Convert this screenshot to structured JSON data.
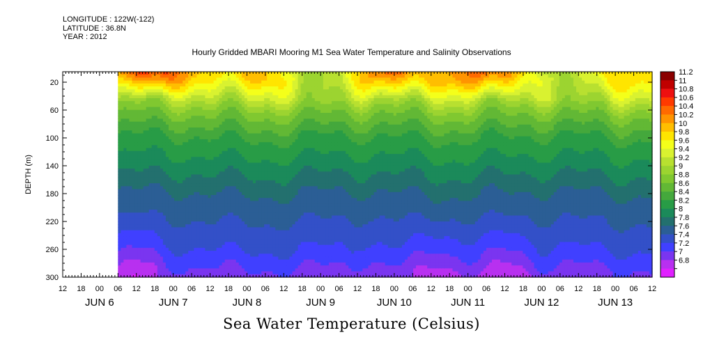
{
  "header": {
    "longitude": "LONGITUDE : 122W(-122)",
    "latitude": "LATITUDE : 36.8N",
    "year": "YEAR : 2012"
  },
  "title": "Hourly Gridded MBARI Mooring M1 Sea Water Temperature and Salinity Observations",
  "caption": "Sea Water Temperature (Celsius)",
  "chart_data": {
    "type": "heatmap",
    "title": "Hourly Gridded MBARI Mooring M1 Sea Water Temperature and Salinity Observations",
    "xlabel": "",
    "ylabel": "DEPTH (m)",
    "colorbar_label": "Sea Water Temperature (Celsius)",
    "y_ticks": [
      20,
      60,
      100,
      140,
      180,
      220,
      260,
      300
    ],
    "ylim": [
      300,
      5
    ],
    "x_hour_ticks": [
      "12",
      "18",
      "00",
      "06",
      "12",
      "18",
      "00",
      "06",
      "12",
      "18",
      "00",
      "06",
      "12",
      "18",
      "00",
      "06",
      "12",
      "18",
      "00",
      "06",
      "12",
      "18",
      "00",
      "06",
      "12",
      "18",
      "00",
      "06",
      "12",
      "18",
      "00",
      "06",
      "12"
    ],
    "x_day_labels": [
      "JUN  6",
      "JUN  7",
      "JUN  8",
      "JUN  9",
      "JUN 10",
      "JUN 11",
      "JUN 12",
      "JUN 13"
    ],
    "data_start_hour": 18,
    "colorbar": {
      "levels": [
        "11.2",
        "11",
        "10.8",
        "10.6",
        "10.4",
        "10.2",
        "10",
        "9.8",
        "9.6",
        "9.4",
        "9.2",
        "9",
        "8.8",
        "8.6",
        "8.4",
        "8.2",
        "8",
        "7.8",
        "7.6",
        "7.4",
        "7.2",
        "7",
        "6.8"
      ],
      "colors": [
        "#8b0000",
        "#c00000",
        "#ee1010",
        "#ff3a00",
        "#ff6a00",
        "#ff9400",
        "#ffbe00",
        "#ffe500",
        "#f4ff1a",
        "#d9f230",
        "#b8e030",
        "#9cd430",
        "#80c830",
        "#62b835",
        "#44a83c",
        "#289c46",
        "#1b8a5a",
        "#23706e",
        "#2b5e95",
        "#3350c8",
        "#4040ff",
        "#7a35f0",
        "#b830f0",
        "#e020ff"
      ]
    },
    "depth_profile_typical": [
      {
        "depth": 10,
        "value": 10.0
      },
      {
        "depth": 30,
        "value": 9.6
      },
      {
        "depth": 60,
        "value": 8.9
      },
      {
        "depth": 100,
        "value": 8.4
      },
      {
        "depth": 140,
        "value": 8.1
      },
      {
        "depth": 180,
        "value": 7.8
      },
      {
        "depth": 220,
        "value": 7.6
      },
      {
        "depth": 260,
        "value": 7.4
      },
      {
        "depth": 300,
        "value": 7.1
      }
    ]
  }
}
